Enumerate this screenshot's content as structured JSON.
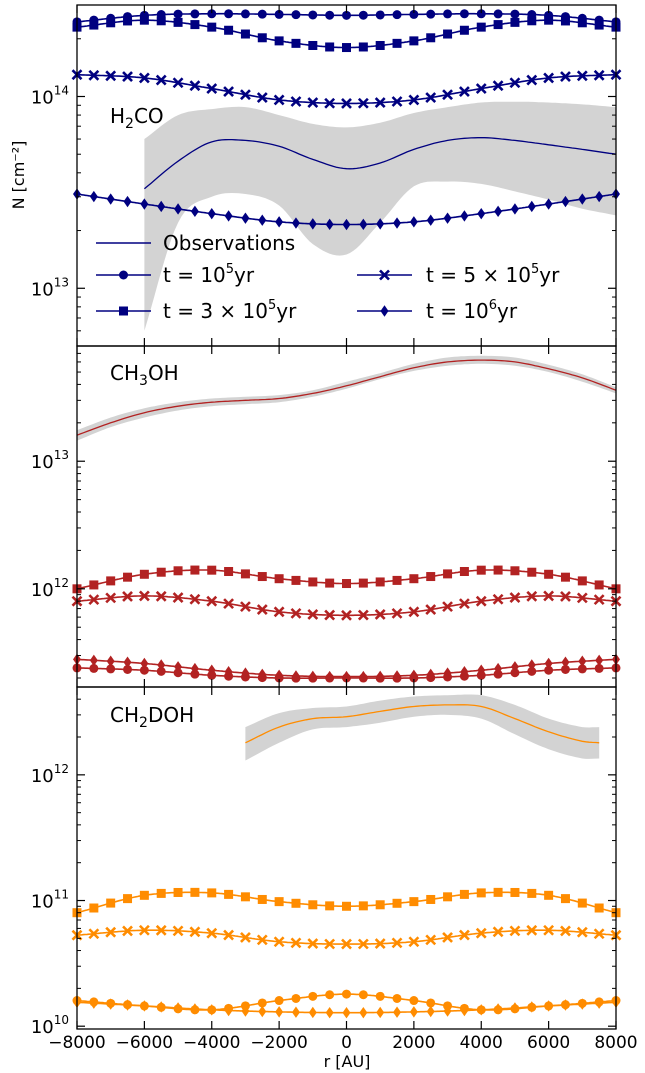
{
  "chart_data": {
    "type": "line",
    "xlabel": "r [AU]",
    "ylabel": "N [cm⁻²]",
    "xlim": [
      -8000,
      8000
    ],
    "x_ticks": [
      -8000,
      -6000,
      -4000,
      -2000,
      0,
      2000,
      4000,
      6000,
      8000
    ],
    "x_tick_labels": [
      "−8000",
      "−6000",
      "−4000",
      "−2000",
      "0",
      "2000",
      "4000",
      "6000",
      "8000"
    ],
    "y_scale": "log",
    "legend": {
      "placement": "lower-left of top panel",
      "entries": [
        {
          "label": "Observations",
          "marker": "none"
        },
        {
          "label": "t = 10⁵yr",
          "marker": "circle"
        },
        {
          "label": "t = 3 × 10⁵yr",
          "marker": "square"
        },
        {
          "label": "t = 5 × 10⁵yr",
          "marker": "x"
        },
        {
          "label": "t = 10⁶yr",
          "marker": "diamond"
        }
      ]
    },
    "panels": [
      {
        "title": "H₂CO",
        "color": "#000080",
        "ylim": [
          5000000000000.0,
          300000000000000.0
        ],
        "y_ticks": [
          {
            "value": 10000000000000.0,
            "base": "10",
            "exp": "13"
          },
          {
            "value": 100000000000000.0,
            "base": "10",
            "exp": "14"
          }
        ],
        "observations": {
          "x": [
            -6000,
            -5000,
            -4000,
            -3000,
            -2000,
            -1000,
            0,
            1000,
            2000,
            3000,
            4000,
            5000,
            6000,
            7000,
            8000
          ],
          "y": [
            33000000000000.0,
            46000000000000.0,
            58000000000000.0,
            59000000000000.0,
            55000000000000.0,
            47000000000000.0,
            42000000000000.0,
            45000000000000.0,
            53000000000000.0,
            59000000000000.0,
            61000000000000.0,
            59000000000000.0,
            56000000000000.0,
            53000000000000.0,
            50000000000000.0
          ],
          "lower": [
            6000000000000.0,
            22000000000000.0,
            30000000000000.0,
            31000000000000.0,
            27000000000000.0,
            17000000000000.0,
            15000000000000.0,
            22000000000000.0,
            34000000000000.0,
            36000000000000.0,
            35000000000000.0,
            32000000000000.0,
            29000000000000.0,
            26000000000000.0,
            24000000000000.0
          ],
          "upper": [
            60000000000000.0,
            80000000000000.0,
            86000000000000.0,
            88000000000000.0,
            80000000000000.0,
            72000000000000.0,
            69000000000000.0,
            73000000000000.0,
            82000000000000.0,
            88000000000000.0,
            93000000000000.0,
            94000000000000.0,
            93000000000000.0,
            91000000000000.0,
            88000000000000.0
          ]
        },
        "series": [
          {
            "name": "t = 10⁵yr",
            "marker": "circle",
            "x": [
              -8000,
              -6000,
              -4000,
              -2000,
              0,
              2000,
              4000,
              6000,
              8000
            ],
            "y": [
              245000000000000.0,
              265000000000000.0,
              270000000000000.0,
              268000000000000.0,
              265000000000000.0,
              268000000000000.0,
              270000000000000.0,
              265000000000000.0,
              245000000000000.0
            ]
          },
          {
            "name": "t = 3 × 10⁵yr",
            "marker": "square",
            "x": [
              -8000,
              -6000,
              -4000,
              -2000,
              0,
              2000,
              4000,
              6000,
              8000
            ],
            "y": [
              230000000000000.0,
              250000000000000.0,
              230000000000000.0,
              195000000000000.0,
              180000000000000.0,
              195000000000000.0,
              230000000000000.0,
              250000000000000.0,
              230000000000000.0
            ]
          },
          {
            "name": "t = 5 × 10⁵yr",
            "marker": "x",
            "x": [
              -8000,
              -6000,
              -4000,
              -2000,
              0,
              2000,
              4000,
              6000,
              8000
            ],
            "y": [
              130000000000000.0,
              125000000000000.0,
              110000000000000.0,
              96000000000000.0,
              92000000000000.0,
              96000000000000.0,
              110000000000000.0,
              125000000000000.0,
              130000000000000.0
            ]
          },
          {
            "name": "t = 10⁶yr",
            "marker": "diamond",
            "x": [
              -8000,
              -6000,
              -4000,
              -2000,
              0,
              2000,
              4000,
              6000,
              8000
            ],
            "y": [
              31000000000000.0,
              27500000000000.0,
              24500000000000.0,
              22200000000000.0,
              21500000000000.0,
              22200000000000.0,
              24500000000000.0,
              27500000000000.0,
              31000000000000.0
            ]
          }
        ]
      },
      {
        "title": "CH₃OH",
        "color": "#b22222",
        "ylim": [
          170000000000.0,
          80000000000000.0
        ],
        "y_ticks": [
          {
            "value": 1000000000000.0,
            "base": "10",
            "exp": "12"
          },
          {
            "value": 10000000000000.0,
            "base": "10",
            "exp": "13"
          }
        ],
        "observations": {
          "x": [
            -8000,
            -7000,
            -6000,
            -5000,
            -4000,
            -3000,
            -2000,
            -1000,
            0,
            1000,
            2000,
            3000,
            4000,
            5000,
            6000,
            7000,
            8000
          ],
          "y": [
            16000000000000.0,
            20000000000000.0,
            24000000000000.0,
            27000000000000.0,
            29000000000000.0,
            30000000000000.0,
            31000000000000.0,
            34000000000000.0,
            39000000000000.0,
            46000000000000.0,
            54000000000000.0,
            60000000000000.0,
            62000000000000.0,
            60000000000000.0,
            53000000000000.0,
            45000000000000.0,
            36000000000000.0
          ],
          "lower": [
            14500000000000.0,
            18500000000000.0,
            22000000000000.0,
            25000000000000.0,
            27000000000000.0,
            28000000000000.0,
            29000000000000.0,
            32000000000000.0,
            37000000000000.0,
            44000000000000.0,
            51000000000000.0,
            56000000000000.0,
            58000000000000.0,
            56000000000000.0,
            50000000000000.0,
            42000000000000.0,
            34000000000000.0
          ],
          "upper": [
            17500000000000.0,
            22000000000000.0,
            26000000000000.0,
            29000000000000.0,
            31000000000000.0,
            32000000000000.0,
            33000000000000.0,
            36000000000000.0,
            42000000000000.0,
            49000000000000.0,
            58000000000000.0,
            65000000000000.0,
            67000000000000.0,
            65000000000000.0,
            57000000000000.0,
            48000000000000.0,
            38000000000000.0
          ]
        },
        "series": [
          {
            "name": "t = 10⁵yr",
            "marker": "circle",
            "x": [
              -8000,
              -6000,
              -4000,
              -2000,
              0,
              2000,
              4000,
              6000,
              8000
            ],
            "y": [
              240000000000.0,
              230000000000.0,
              210000000000.0,
              200000000000.0,
              200000000000.0,
              200000000000.0,
              210000000000.0,
              230000000000.0,
              240000000000.0
            ]
          },
          {
            "name": "t = 3 × 10⁵yr",
            "marker": "square",
            "x": [
              -8000,
              -6000,
              -4000,
              -2000,
              0,
              2000,
              4000,
              6000,
              8000
            ],
            "y": [
              1000000000000.0,
              1300000000000.0,
              1400000000000.0,
              1200000000000.0,
              1100000000000.0,
              1200000000000.0,
              1400000000000.0,
              1300000000000.0,
              1000000000000.0
            ]
          },
          {
            "name": "t = 5 × 10⁵yr",
            "marker": "x",
            "x": [
              -8000,
              -6000,
              -4000,
              -2000,
              0,
              2000,
              4000,
              6000,
              8000
            ],
            "y": [
              800000000000.0,
              880000000000.0,
              800000000000.0,
              660000000000.0,
              620000000000.0,
              660000000000.0,
              800000000000.0,
              880000000000.0,
              800000000000.0
            ]
          },
          {
            "name": "t = 10⁶yr",
            "marker": "diamond",
            "x": [
              -8000,
              -6000,
              -4000,
              -2000,
              0,
              2000,
              4000,
              6000,
              8000
            ],
            "y": [
              280000000000.0,
              260000000000.0,
              230000000000.0,
              210000000000.0,
              205000000000.0,
              210000000000.0,
              230000000000.0,
              260000000000.0,
              280000000000.0
            ]
          }
        ]
      },
      {
        "title": "CH₂DOH",
        "color": "#ff8c00",
        "ylim": [
          9500000000.0,
          5000000000000.0
        ],
        "y_ticks": [
          {
            "value": 10000000000.0,
            "base": "10",
            "exp": "10"
          },
          {
            "value": 100000000000.0,
            "base": "10",
            "exp": "11"
          },
          {
            "value": 1000000000000.0,
            "base": "10",
            "exp": "12"
          }
        ],
        "observations": {
          "x": [
            -3000,
            -2000,
            -1000,
            0,
            1000,
            2000,
            3000,
            4000,
            5000,
            6000,
            7000,
            7500
          ],
          "y": [
            1800000000000.0,
            2400000000000.0,
            2800000000000.0,
            2900000000000.0,
            3200000000000.0,
            3500000000000.0,
            3600000000000.0,
            3500000000000.0,
            2800000000000.0,
            2200000000000.0,
            1850000000000.0,
            1800000000000.0
          ],
          "lower": [
            1300000000000.0,
            1800000000000.0,
            2300000000000.0,
            2400000000000.0,
            2600000000000.0,
            2900000000000.0,
            3000000000000.0,
            2800000000000.0,
            2100000000000.0,
            1600000000000.0,
            1350000000000.0,
            1350000000000.0
          ],
          "upper": [
            2400000000000.0,
            3100000000000.0,
            3400000000000.0,
            3500000000000.0,
            3900000000000.0,
            4200000000000.0,
            4300000000000.0,
            4300000000000.0,
            3600000000000.0,
            2800000000000.0,
            2400000000000.0,
            2400000000000.0
          ]
        },
        "series": [
          {
            "name": "t = 10⁵yr",
            "marker": "circle",
            "x": [
              -8000,
              -6000,
              -4000,
              -2000,
              0,
              2000,
              4000,
              6000,
              8000
            ],
            "y": [
              16000000000.0,
              14500000000.0,
              13500000000.0,
              16000000000.0,
              18000000000.0,
              16000000000.0,
              13500000000.0,
              14500000000.0,
              16000000000.0
            ]
          },
          {
            "name": "t = 3 × 10⁵yr",
            "marker": "square",
            "x": [
              -8000,
              -6000,
              -4000,
              -2000,
              0,
              2000,
              4000,
              6000,
              8000
            ],
            "y": [
              80000000000.0,
              110000000000.0,
              115000000000.0,
              98000000000.0,
              90000000000.0,
              98000000000.0,
              115000000000.0,
              110000000000.0,
              80000000000.0
            ]
          },
          {
            "name": "t = 5 × 10⁵yr",
            "marker": "x",
            "x": [
              -8000,
              -6000,
              -4000,
              -2000,
              0,
              2000,
              4000,
              6000,
              8000
            ],
            "y": [
              53000000000.0,
              58000000000.0,
              55000000000.0,
              47000000000.0,
              45000000000.0,
              47000000000.0,
              55000000000.0,
              58000000000.0,
              53000000000.0
            ]
          },
          {
            "name": "t = 10⁶yr",
            "marker": "diamond",
            "x": [
              -8000,
              -6000,
              -4000,
              -2000,
              0,
              2000,
              4000,
              6000,
              8000
            ],
            "y": [
              15500000000.0,
              14500000000.0,
              13500000000.0,
              13000000000.0,
              12800000000.0,
              13000000000.0,
              13500000000.0,
              14500000000.0,
              15500000000.0
            ]
          }
        ]
      }
    ]
  }
}
